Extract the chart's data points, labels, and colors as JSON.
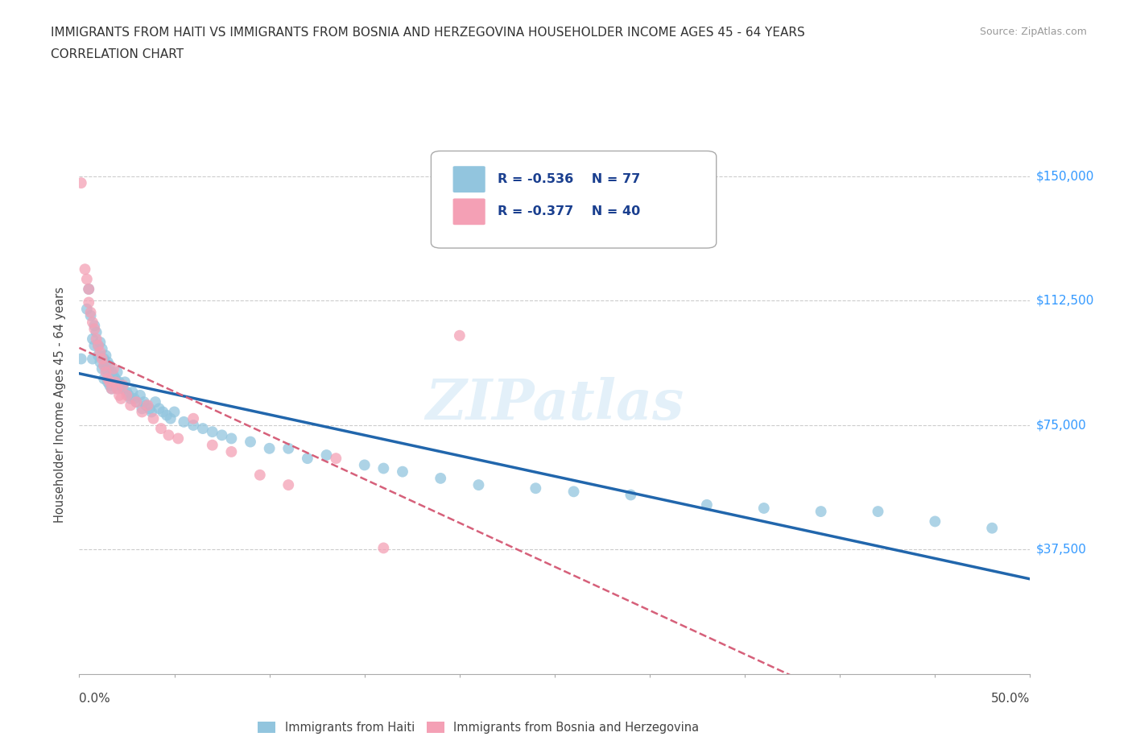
{
  "title_line1": "IMMIGRANTS FROM HAITI VS IMMIGRANTS FROM BOSNIA AND HERZEGOVINA HOUSEHOLDER INCOME AGES 45 - 64 YEARS",
  "title_line2": "CORRELATION CHART",
  "source": "Source: ZipAtlas.com",
  "ylabel": "Householder Income Ages 45 - 64 years",
  "xlim": [
    0,
    0.5
  ],
  "ylim": [
    0,
    162500
  ],
  "ytick_positions": [
    37500,
    75000,
    112500,
    150000
  ],
  "ytick_labels": [
    "$37,500",
    "$75,000",
    "$112,500",
    "$150,000"
  ],
  "haiti_R": -0.536,
  "haiti_N": 77,
  "bosnia_R": -0.377,
  "bosnia_N": 40,
  "haiti_color": "#92c5de",
  "bosnia_color": "#f4a0b5",
  "haiti_line_color": "#2166ac",
  "bosnia_line_color": "#d6607a",
  "haiti_x": [
    0.001,
    0.004,
    0.005,
    0.006,
    0.007,
    0.007,
    0.008,
    0.008,
    0.009,
    0.01,
    0.01,
    0.011,
    0.011,
    0.012,
    0.012,
    0.013,
    0.013,
    0.014,
    0.014,
    0.015,
    0.015,
    0.016,
    0.016,
    0.017,
    0.017,
    0.018,
    0.018,
    0.019,
    0.02,
    0.02,
    0.021,
    0.022,
    0.023,
    0.024,
    0.025,
    0.026,
    0.027,
    0.028,
    0.029,
    0.03,
    0.032,
    0.033,
    0.034,
    0.035,
    0.037,
    0.038,
    0.04,
    0.042,
    0.044,
    0.046,
    0.048,
    0.05,
    0.055,
    0.06,
    0.065,
    0.07,
    0.075,
    0.08,
    0.09,
    0.1,
    0.11,
    0.12,
    0.13,
    0.15,
    0.16,
    0.17,
    0.19,
    0.21,
    0.24,
    0.26,
    0.29,
    0.33,
    0.36,
    0.39,
    0.42,
    0.45,
    0.48
  ],
  "haiti_y": [
    95000,
    110000,
    116000,
    108000,
    101000,
    95000,
    105000,
    99000,
    103000,
    99000,
    96000,
    100000,
    94000,
    98000,
    92000,
    95000,
    89000,
    96000,
    92000,
    94000,
    88000,
    93000,
    87000,
    91000,
    86000,
    90000,
    88000,
    89000,
    91000,
    86000,
    88000,
    87000,
    86000,
    88000,
    85000,
    84000,
    83000,
    85000,
    83000,
    82000,
    84000,
    80000,
    82000,
    81000,
    80000,
    79000,
    82000,
    80000,
    79000,
    78000,
    77000,
    79000,
    76000,
    75000,
    74000,
    73000,
    72000,
    71000,
    70000,
    68000,
    68000,
    65000,
    66000,
    63000,
    62000,
    61000,
    59000,
    57000,
    56000,
    55000,
    54000,
    51000,
    50000,
    49000,
    49000,
    46000,
    44000
  ],
  "bosnia_x": [
    0.001,
    0.003,
    0.004,
    0.005,
    0.005,
    0.006,
    0.007,
    0.008,
    0.009,
    0.01,
    0.011,
    0.012,
    0.013,
    0.014,
    0.015,
    0.016,
    0.017,
    0.018,
    0.019,
    0.02,
    0.021,
    0.022,
    0.023,
    0.025,
    0.027,
    0.03,
    0.033,
    0.036,
    0.039,
    0.043,
    0.047,
    0.052,
    0.06,
    0.07,
    0.08,
    0.095,
    0.11,
    0.135,
    0.16,
    0.2
  ],
  "bosnia_y": [
    148000,
    122000,
    119000,
    116000,
    112000,
    109000,
    106000,
    104000,
    101000,
    99000,
    97000,
    95000,
    93000,
    91000,
    89000,
    88000,
    86000,
    92000,
    88000,
    86000,
    84000,
    83000,
    87000,
    84000,
    81000,
    82000,
    79000,
    81000,
    77000,
    74000,
    72000,
    71000,
    77000,
    69000,
    67000,
    60000,
    57000,
    65000,
    38000,
    102000
  ]
}
